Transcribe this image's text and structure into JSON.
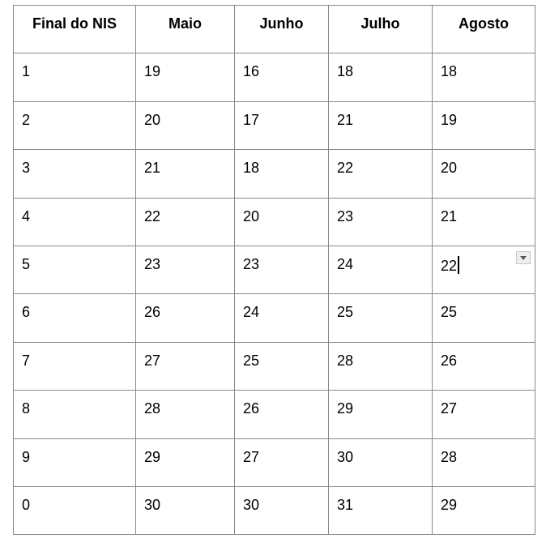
{
  "table": {
    "headers": [
      "Final do NIS",
      "Maio",
      "Junho",
      "Julho",
      "Agosto"
    ],
    "rows": [
      [
        "1",
        "19",
        "16",
        "18",
        "18"
      ],
      [
        "2",
        "20",
        "17",
        "21",
        "19"
      ],
      [
        "3",
        "21",
        "18",
        "22",
        "20"
      ],
      [
        "4",
        "22",
        "20",
        "23",
        "21"
      ],
      [
        "5",
        "23",
        "23",
        "24",
        "22"
      ],
      [
        "6",
        "26",
        "24",
        "25",
        "25"
      ],
      [
        "7",
        "27",
        "25",
        "28",
        "26"
      ],
      [
        "8",
        "28",
        "26",
        "29",
        "27"
      ],
      [
        "9",
        "29",
        "27",
        "30",
        "28"
      ],
      [
        "0",
        "30",
        "30",
        "31",
        "29"
      ]
    ],
    "active_cell": {
      "row": 4,
      "col": 4
    },
    "dropdown_icon": "chevron-down-icon"
  }
}
